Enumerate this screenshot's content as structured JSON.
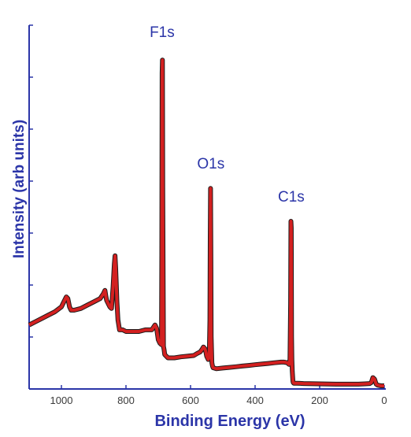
{
  "chart_data": {
    "type": "line",
    "title": "",
    "xlabel": "Binding Energy (eV)",
    "ylabel": "Intensity (arb units)",
    "xlim": [
      1100,
      0
    ],
    "xticks": [
      1000,
      800,
      600,
      400,
      200,
      0
    ],
    "ylim": [
      0,
      1
    ],
    "y_tick_count": 7,
    "grid": false,
    "legend": "none",
    "series": [
      {
        "color": "#d32020",
        "outline_color": "#1a1a1a",
        "x": [
          1100,
          1080,
          1060,
          1040,
          1020,
          1000,
          990,
          985,
          980,
          975,
          970,
          960,
          940,
          920,
          900,
          880,
          870,
          865,
          862,
          860,
          855,
          850,
          845,
          840,
          836,
          834,
          832,
          830,
          828,
          825,
          820,
          810,
          800,
          780,
          760,
          740,
          720,
          710,
          705,
          700,
          695,
          690,
          689,
          688,
          687,
          686,
          684,
          682,
          680,
          670,
          650,
          630,
          610,
          590,
          580,
          570,
          565,
          560,
          555,
          552,
          550,
          545,
          542,
          540,
          539,
          538,
          537,
          536,
          534,
          532,
          530,
          520,
          500,
          480,
          460,
          440,
          420,
          400,
          380,
          360,
          340,
          320,
          310,
          300,
          295,
          292,
          290,
          289,
          288,
          287,
          286,
          285,
          284,
          283,
          282,
          280,
          270,
          250,
          200,
          150,
          100,
          80,
          60,
          45,
          40,
          35,
          30,
          25,
          20,
          10,
          0
        ],
        "y": [
          0.185,
          0.195,
          0.205,
          0.215,
          0.225,
          0.24,
          0.26,
          0.27,
          0.265,
          0.24,
          0.23,
          0.23,
          0.235,
          0.245,
          0.255,
          0.265,
          0.28,
          0.29,
          0.27,
          0.26,
          0.25,
          0.24,
          0.235,
          0.3,
          0.37,
          0.395,
          0.36,
          0.31,
          0.255,
          0.2,
          0.17,
          0.17,
          0.165,
          0.165,
          0.165,
          0.17,
          0.17,
          0.185,
          0.175,
          0.14,
          0.13,
          0.125,
          0.4,
          0.95,
          0.99,
          0.6,
          0.12,
          0.11,
          0.095,
          0.085,
          0.085,
          0.088,
          0.09,
          0.092,
          0.098,
          0.103,
          0.11,
          0.118,
          0.112,
          0.1,
          0.09,
          0.08,
          0.09,
          0.2,
          0.45,
          0.6,
          0.4,
          0.15,
          0.07,
          0.06,
          0.055,
          0.052,
          0.054,
          0.056,
          0.058,
          0.06,
          0.062,
          0.064,
          0.066,
          0.068,
          0.07,
          0.072,
          0.072,
          0.07,
          0.065,
          0.08,
          0.25,
          0.5,
          0.48,
          0.15,
          0.08,
          0.045,
          0.03,
          0.015,
          0.01,
          0.008,
          0.008,
          0.007,
          0.006,
          0.005,
          0.005,
          0.005,
          0.006,
          0.007,
          0.01,
          0.025,
          0.02,
          0.005,
          0.002,
          0.0,
          0.0
        ]
      }
    ],
    "annotations": [
      {
        "text": "F1s",
        "x": 688,
        "y": 1.06
      },
      {
        "text": "O1s",
        "x": 537,
        "y": 0.66
      },
      {
        "text": "C1s",
        "x": 288,
        "y": 0.56
      }
    ]
  }
}
